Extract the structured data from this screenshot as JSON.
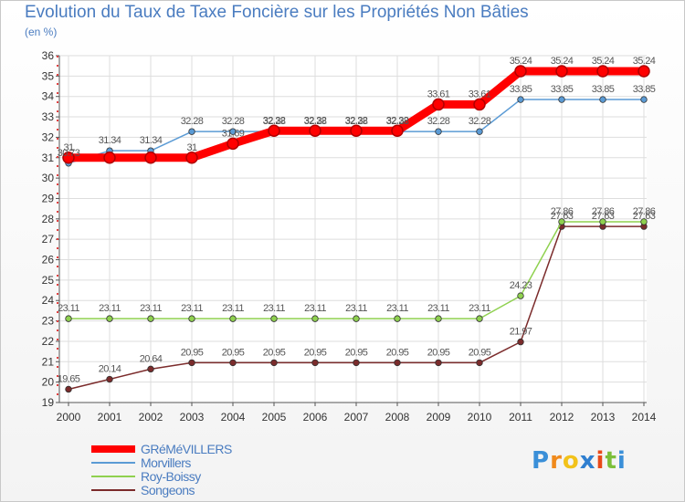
{
  "chart_data": {
    "type": "line",
    "title": "Evolution du Taux de Taxe Foncière sur les Propriétés Non Bâties",
    "ylabel": "(en %)",
    "xlabel": "",
    "ylim": [
      19,
      36
    ],
    "yticks": [
      19,
      20,
      21,
      22,
      23,
      24,
      25,
      26,
      27,
      28,
      29,
      30,
      31,
      32,
      33,
      34,
      35,
      36
    ],
    "x": [
      "2000",
      "2001",
      "2002",
      "2003",
      "2004",
      "2005",
      "2006",
      "2007",
      "2008",
      "2009",
      "2010",
      "2011",
      "2012",
      "2013",
      "2014"
    ],
    "grid": true,
    "series": [
      {
        "name": "GRéMéVILLERS",
        "color": "#ff0000",
        "values": [
          31,
          31,
          31,
          31,
          31.69,
          32.32,
          32.32,
          32.32,
          32.32,
          33.61,
          33.61,
          35.24,
          35.24,
          35.24,
          35.24
        ],
        "labels": [
          "31",
          "",
          "",
          "31",
          "31.69",
          "32.32",
          "32.32",
          "32.32",
          "32.32",
          "33.61",
          "33.61",
          "35.24",
          "35.24",
          "35.24",
          "35.24"
        ]
      },
      {
        "name": "Morvillers",
        "color": "#5b9bd5",
        "values": [
          30.73,
          31.34,
          31.34,
          32.28,
          32.28,
          32.28,
          32.28,
          32.28,
          32.28,
          32.28,
          32.28,
          33.85,
          33.85,
          33.85,
          33.85
        ],
        "labels": [
          "30.73",
          "31.34",
          "31.34",
          "32.28",
          "32.28",
          "32.28",
          "32.28",
          "32.28",
          "32.28",
          "32.28",
          "32.28",
          "33.85",
          "33.85",
          "33.85",
          "33.85"
        ]
      },
      {
        "name": "Roy-Boissy",
        "color": "#8fd14f",
        "values": [
          23.11,
          23.11,
          23.11,
          23.11,
          23.11,
          23.11,
          23.11,
          23.11,
          23.11,
          23.11,
          23.11,
          24.23,
          27.86,
          27.86,
          27.86
        ],
        "labels": [
          "23.11",
          "23.11",
          "23.11",
          "23.11",
          "23.11",
          "23.11",
          "23.11",
          "23.11",
          "23.11",
          "23.11",
          "23.11",
          "24.23",
          "27.86",
          "27.86",
          "27.86"
        ]
      },
      {
        "name": "Songeons",
        "color": "#7b2b2b",
        "values": [
          19.65,
          20.14,
          20.64,
          20.95,
          20.95,
          20.95,
          20.95,
          20.95,
          20.95,
          20.95,
          20.95,
          21.97,
          27.63,
          27.63,
          27.63
        ],
        "labels": [
          "19.65",
          "20.14",
          "20.64",
          "20.95",
          "20.95",
          "20.95",
          "20.95",
          "20.95",
          "20.95",
          "20.95",
          "20.95",
          "21.97",
          "27.63",
          "27.63",
          "27.63"
        ]
      }
    ]
  },
  "legend": [
    {
      "label": "GRéMéVILLERS"
    },
    {
      "label": "Morvillers"
    },
    {
      "label": "Roy-Boissy"
    },
    {
      "label": "Songeons"
    }
  ],
  "logo": {
    "letters": [
      "P",
      "r",
      "o",
      "x",
      "i",
      "t",
      "i"
    ],
    "colors": [
      "#3a8fd8",
      "#f08a1c",
      "#f2c21a",
      "#2f7fd0",
      "#e84a1a",
      "#7cbf3a",
      "#3a8fd8"
    ]
  }
}
